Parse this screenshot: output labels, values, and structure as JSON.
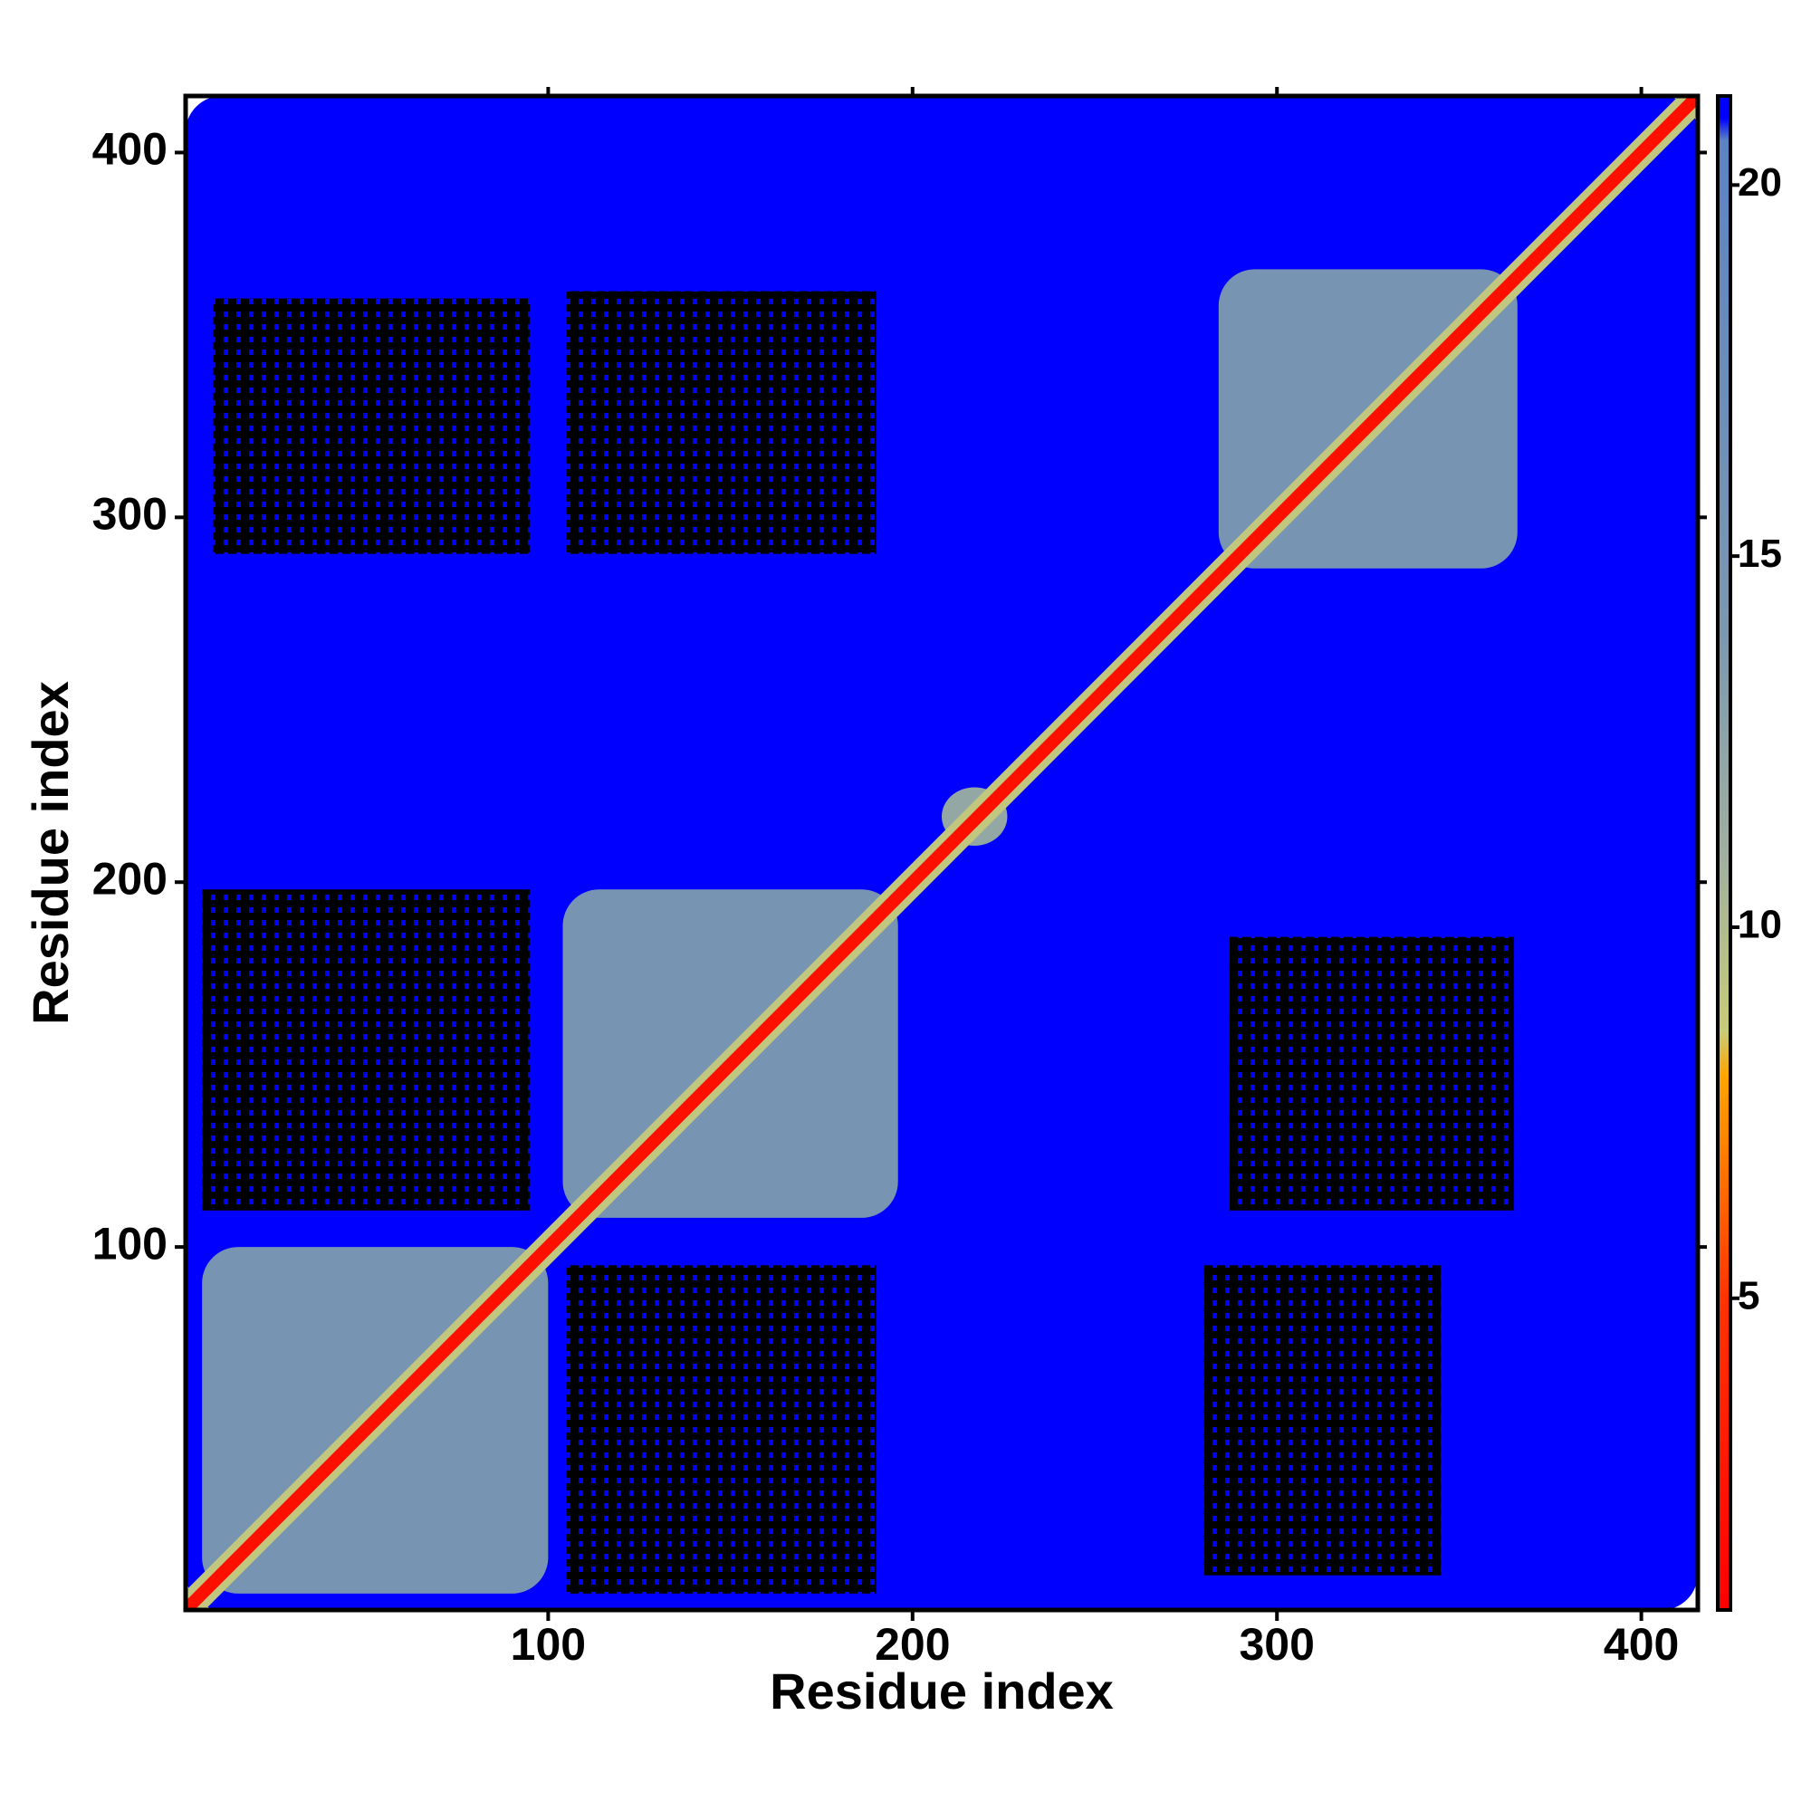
{
  "chart_data": {
    "type": "contact_map",
    "x_label": "Residue index",
    "y_label": "Residue index",
    "xlim": [
      0.5,
      415.5
    ],
    "ylim": [
      0.5,
      415.5
    ],
    "xticks": [
      100,
      200,
      300,
      400
    ],
    "yticks": [
      100,
      200,
      300,
      400
    ],
    "clim": [
      0.8,
      21.2
    ],
    "cticks": [
      5,
      10,
      15,
      20
    ],
    "colorscale": [
      [
        0.8,
        "#ff0000"
      ],
      [
        5,
        "#ff3300"
      ],
      [
        8,
        "#ffa500"
      ],
      [
        8.6,
        "#c8cc78"
      ],
      [
        11,
        "#9fb0a0"
      ],
      [
        14,
        "#7c98b0"
      ],
      [
        20.6,
        "#5b84c4"
      ],
      [
        20.9,
        "#0000ff"
      ]
    ],
    "regions": [
      {
        "x": [
          0.5,
          415.5
        ],
        "y": [
          0.5,
          415.5
        ],
        "value": 21
      },
      {
        "x": [
          5,
          95
        ],
        "y": [
          110,
          198
        ],
        "value": 17,
        "sparse": true
      },
      {
        "x": [
          105,
          190
        ],
        "y": [
          5,
          95
        ],
        "value": 17,
        "sparse": true
      },
      {
        "x": [
          8,
          95
        ],
        "y": [
          290,
          360
        ],
        "value": 17,
        "sparse": true
      },
      {
        "x": [
          105,
          190
        ],
        "y": [
          290,
          362
        ],
        "value": 17,
        "sparse": true
      },
      {
        "x": [
          280,
          345
        ],
        "y": [
          10,
          95
        ],
        "value": 17,
        "sparse": true
      },
      {
        "x": [
          287,
          365
        ],
        "y": [
          110,
          185
        ],
        "value": 17,
        "sparse": true
      },
      {
        "x": [
          5,
          100
        ],
        "y": [
          5,
          100
        ],
        "value": 15
      },
      {
        "x": [
          104,
          196
        ],
        "y": [
          108,
          198
        ],
        "value": 15
      },
      {
        "x": [
          284,
          366
        ],
        "y": [
          286,
          368
        ],
        "value": 15
      },
      {
        "x": [
          208,
          226
        ],
        "y": [
          210,
          226
        ],
        "value": 12
      }
    ],
    "diagonal": {
      "range": [
        0.5,
        415.5
      ],
      "value": 2,
      "halo_value": 9
    }
  }
}
